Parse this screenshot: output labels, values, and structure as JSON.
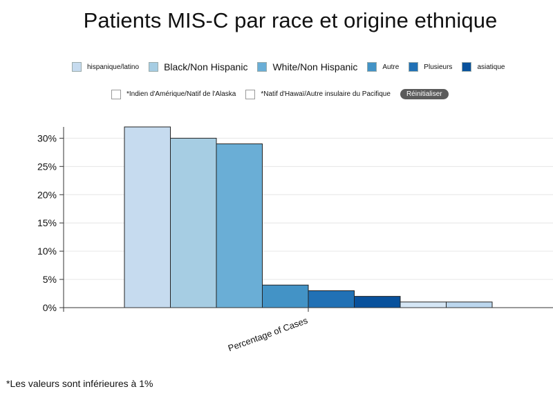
{
  "title": "Patients MIS-C par race et origine ethnique",
  "legend": {
    "row1": [
      {
        "label": "hispanique/latino",
        "color": "#c6dbef",
        "size": "small"
      },
      {
        "label": "Black/Non Hispanic",
        "color": "#a6cde3",
        "size": "large"
      },
      {
        "label": "White/Non Hispanic",
        "color": "#6aaed6",
        "size": "large"
      },
      {
        "label": "Autre",
        "color": "#4393c6",
        "size": "small"
      },
      {
        "label": "Plusieurs",
        "color": "#2171b5",
        "size": "small"
      },
      {
        "label": "asiatique",
        "color": "#08519c",
        "size": "small"
      }
    ],
    "row2": [
      {
        "label": "*Indien d'Amérique/Natif de l'Alaska"
      },
      {
        "label": "*Natif d'Hawaï/Autre insulaire du Pacifique"
      }
    ],
    "reset_label": "Réinitialiser"
  },
  "chart_data": {
    "type": "bar",
    "xlabel": "Percentage of Cases",
    "ylim": [
      0,
      32
    ],
    "yticks": [
      0,
      5,
      10,
      15,
      20,
      25,
      30
    ],
    "ytick_labels": [
      "0%",
      "5%",
      "10%",
      "15%",
      "20%",
      "25%",
      "30%"
    ],
    "grid": true,
    "series": [
      {
        "name": "hispanique/latino",
        "value": 32,
        "color": "#c6dbef"
      },
      {
        "name": "Black/Non Hispanic",
        "value": 30,
        "color": "#a6cde3"
      },
      {
        "name": "White/Non Hispanic",
        "value": 29,
        "color": "#6aaed6"
      },
      {
        "name": "Autre",
        "value": 4,
        "color": "#4393c6"
      },
      {
        "name": "Plusieurs",
        "value": 3,
        "color": "#2171b5"
      },
      {
        "name": "asiatique",
        "value": 2,
        "color": "#08519c"
      },
      {
        "name": "*Indien d'Amérique/Natif de l'Alaska",
        "value": 1,
        "color": "#d5e6f5"
      },
      {
        "name": "*Natif d'Hawaï/Autre insulaire du Pacifique",
        "value": 1,
        "color": "#bcd7ee"
      }
    ]
  },
  "footnote": "*Les valeurs sont inférieures à 1%"
}
